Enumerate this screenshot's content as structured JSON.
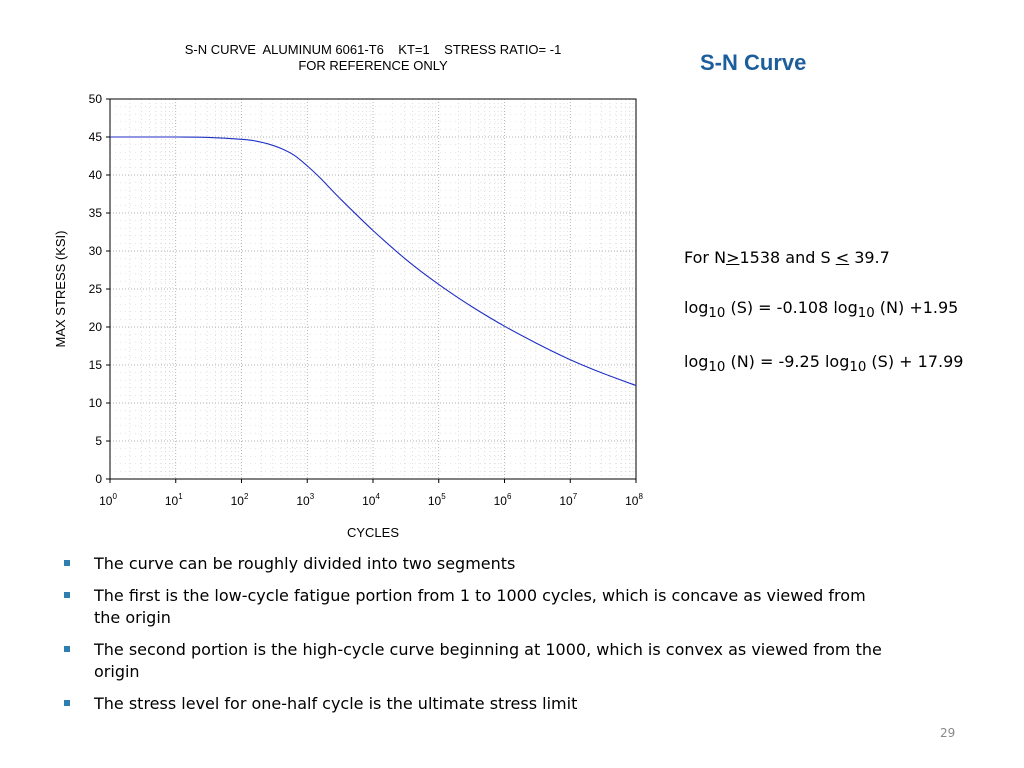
{
  "slide": {
    "title": "S-N Curve",
    "page_number": "29"
  },
  "chart_data": {
    "type": "line",
    "title": "S-N CURVE  ALUMINUM 6061-T6    KT=1    STRESS RATIO= -1",
    "subtitle": "FOR REFERENCE ONLY",
    "xlabel": "CYCLES",
    "ylabel": "MAX STRESS (KSI)",
    "x_scale": "log10",
    "xlim": [
      1,
      100000000
    ],
    "ylim": [
      0,
      50
    ],
    "x_tick_base": "10",
    "x_tick_exponents": [
      "0",
      "1",
      "2",
      "3",
      "4",
      "5",
      "6",
      "7",
      "8"
    ],
    "y_ticks": [
      "0",
      "5",
      "10",
      "15",
      "20",
      "25",
      "30",
      "35",
      "40",
      "45",
      "50"
    ],
    "grid": true,
    "line_color": "#1f2fc4",
    "series": [
      {
        "x": [
          1,
          3.16,
          10,
          31.6,
          100,
          158,
          251,
          398,
          631,
          1000,
          1538,
          3162,
          10000,
          31623,
          100000,
          316228,
          1000000,
          3162278,
          10000000,
          31622777,
          100000000
        ],
        "y": [
          45.0,
          45.0,
          45.0,
          44.95,
          44.7,
          44.5,
          44.1,
          43.5,
          42.6,
          41.2,
          39.7,
          36.9,
          32.7,
          28.9,
          25.6,
          22.7,
          20.1,
          17.8,
          15.7,
          13.9,
          12.3
        ]
      }
    ]
  },
  "formulas": {
    "f1": {
      "prefix": "For N",
      "ge": ">",
      "n_val": "1538 and S ",
      "le": "<",
      "s_val": " 39.7"
    },
    "f2": {
      "log_a": "log",
      "sub_a": "10",
      "mid_a": " (S) = -0.108 log",
      "sub_b": "10",
      "end": " (N) +1.95"
    },
    "f3": {
      "log_a": "log",
      "sub_a": "10",
      "mid_a": " (N) = -9.25 log",
      "sub_b": "10",
      "end": " (S) + 17.99"
    }
  },
  "bullets": [
    "The curve can be roughly divided into two segments",
    "The first is the low-cycle fatigue portion from 1 to 1000 cycles, which is concave as viewed from the origin",
    "The second portion is the high-cycle curve beginning at 1000, which is convex as viewed from the origin",
    "The stress level for one-half cycle is the ultimate stress limit"
  ]
}
